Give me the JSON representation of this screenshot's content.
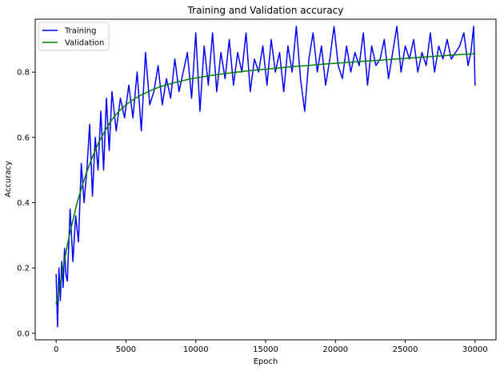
{
  "chart_data": {
    "type": "line",
    "title": "Training and Validation accuracy",
    "xlabel": "Epoch",
    "ylabel": "Accuracy",
    "xlim": [
      -1500,
      31500
    ],
    "ylim": [
      -0.02,
      0.962
    ],
    "xticks": [
      0,
      5000,
      10000,
      15000,
      20000,
      25000,
      30000
    ],
    "xtick_labels": [
      "0",
      "5000",
      "10000",
      "15000",
      "20000",
      "25000",
      "30000"
    ],
    "yticks": [
      0.0,
      0.2,
      0.4,
      0.6,
      0.8
    ],
    "ytick_labels": [
      "0.0",
      "0.2",
      "0.4",
      "0.6",
      "0.8"
    ],
    "grid": false,
    "legend_position": "upper left",
    "series": [
      {
        "name": "Training",
        "color": "#0000ff",
        "x": [
          0,
          100,
          200,
          300,
          400,
          500,
          600,
          700,
          800,
          1000,
          1200,
          1400,
          1600,
          1800,
          2000,
          2200,
          2400,
          2600,
          2800,
          3000,
          3200,
          3400,
          3600,
          3800,
          4000,
          4300,
          4600,
          4900,
          5200,
          5500,
          5800,
          6100,
          6400,
          6700,
          7000,
          7300,
          7600,
          7900,
          8200,
          8500,
          8800,
          9100,
          9400,
          9700,
          10000,
          10300,
          10600,
          10900,
          11200,
          11500,
          11800,
          12100,
          12400,
          12700,
          13000,
          13300,
          13600,
          13900,
          14200,
          14500,
          14800,
          15100,
          15400,
          15700,
          16000,
          16300,
          16600,
          16900,
          17200,
          17500,
          17800,
          18100,
          18400,
          18700,
          19000,
          19300,
          19600,
          19900,
          20200,
          20500,
          20800,
          21100,
          21400,
          21700,
          22000,
          22300,
          22600,
          22900,
          23200,
          23500,
          23800,
          24100,
          24400,
          24700,
          25000,
          25300,
          25600,
          25900,
          26200,
          26500,
          26800,
          27100,
          27400,
          27700,
          28000,
          28300,
          28600,
          28900,
          29200,
          29500,
          29700,
          29900,
          30000
        ],
        "y": [
          0.18,
          0.02,
          0.2,
          0.1,
          0.22,
          0.14,
          0.26,
          0.18,
          0.16,
          0.38,
          0.22,
          0.36,
          0.28,
          0.52,
          0.4,
          0.5,
          0.64,
          0.42,
          0.6,
          0.5,
          0.68,
          0.5,
          0.72,
          0.56,
          0.74,
          0.62,
          0.72,
          0.66,
          0.76,
          0.66,
          0.8,
          0.62,
          0.86,
          0.7,
          0.74,
          0.82,
          0.7,
          0.78,
          0.72,
          0.84,
          0.74,
          0.8,
          0.86,
          0.72,
          0.92,
          0.68,
          0.88,
          0.76,
          0.92,
          0.74,
          0.86,
          0.78,
          0.9,
          0.76,
          0.86,
          0.8,
          0.92,
          0.74,
          0.84,
          0.8,
          0.88,
          0.76,
          0.9,
          0.8,
          0.86,
          0.74,
          0.88,
          0.8,
          0.94,
          0.78,
          0.68,
          0.84,
          0.92,
          0.8,
          0.88,
          0.76,
          0.84,
          0.94,
          0.82,
          0.78,
          0.88,
          0.8,
          0.86,
          0.82,
          0.92,
          0.76,
          0.88,
          0.82,
          0.84,
          0.9,
          0.78,
          0.86,
          0.94,
          0.8,
          0.88,
          0.84,
          0.9,
          0.8,
          0.86,
          0.82,
          0.92,
          0.8,
          0.88,
          0.84,
          0.9,
          0.84,
          0.86,
          0.88,
          0.92,
          0.82,
          0.86,
          0.94,
          0.76
        ]
      },
      {
        "name": "Validation",
        "color": "#008000",
        "x": [
          0,
          200,
          500,
          800,
          1000,
          1500,
          2000,
          2500,
          3000,
          3500,
          4000,
          4500,
          5000,
          5500,
          6000,
          6500,
          7000,
          7500,
          8000,
          8500,
          9000,
          9500,
          10000,
          11000,
          12000,
          13000,
          14000,
          15000,
          16000,
          17000,
          18000,
          19000,
          20000,
          21000,
          22000,
          23000,
          24000,
          25000,
          26000,
          27000,
          28000,
          29000,
          30000
        ],
        "y": [
          0.09,
          0.13,
          0.2,
          0.27,
          0.31,
          0.4,
          0.47,
          0.53,
          0.58,
          0.62,
          0.655,
          0.68,
          0.7,
          0.715,
          0.728,
          0.738,
          0.748,
          0.756,
          0.762,
          0.768,
          0.773,
          0.778,
          0.782,
          0.789,
          0.795,
          0.8,
          0.805,
          0.809,
          0.813,
          0.817,
          0.82,
          0.824,
          0.827,
          0.83,
          0.833,
          0.836,
          0.839,
          0.842,
          0.845,
          0.848,
          0.851,
          0.854,
          0.856
        ]
      }
    ]
  }
}
